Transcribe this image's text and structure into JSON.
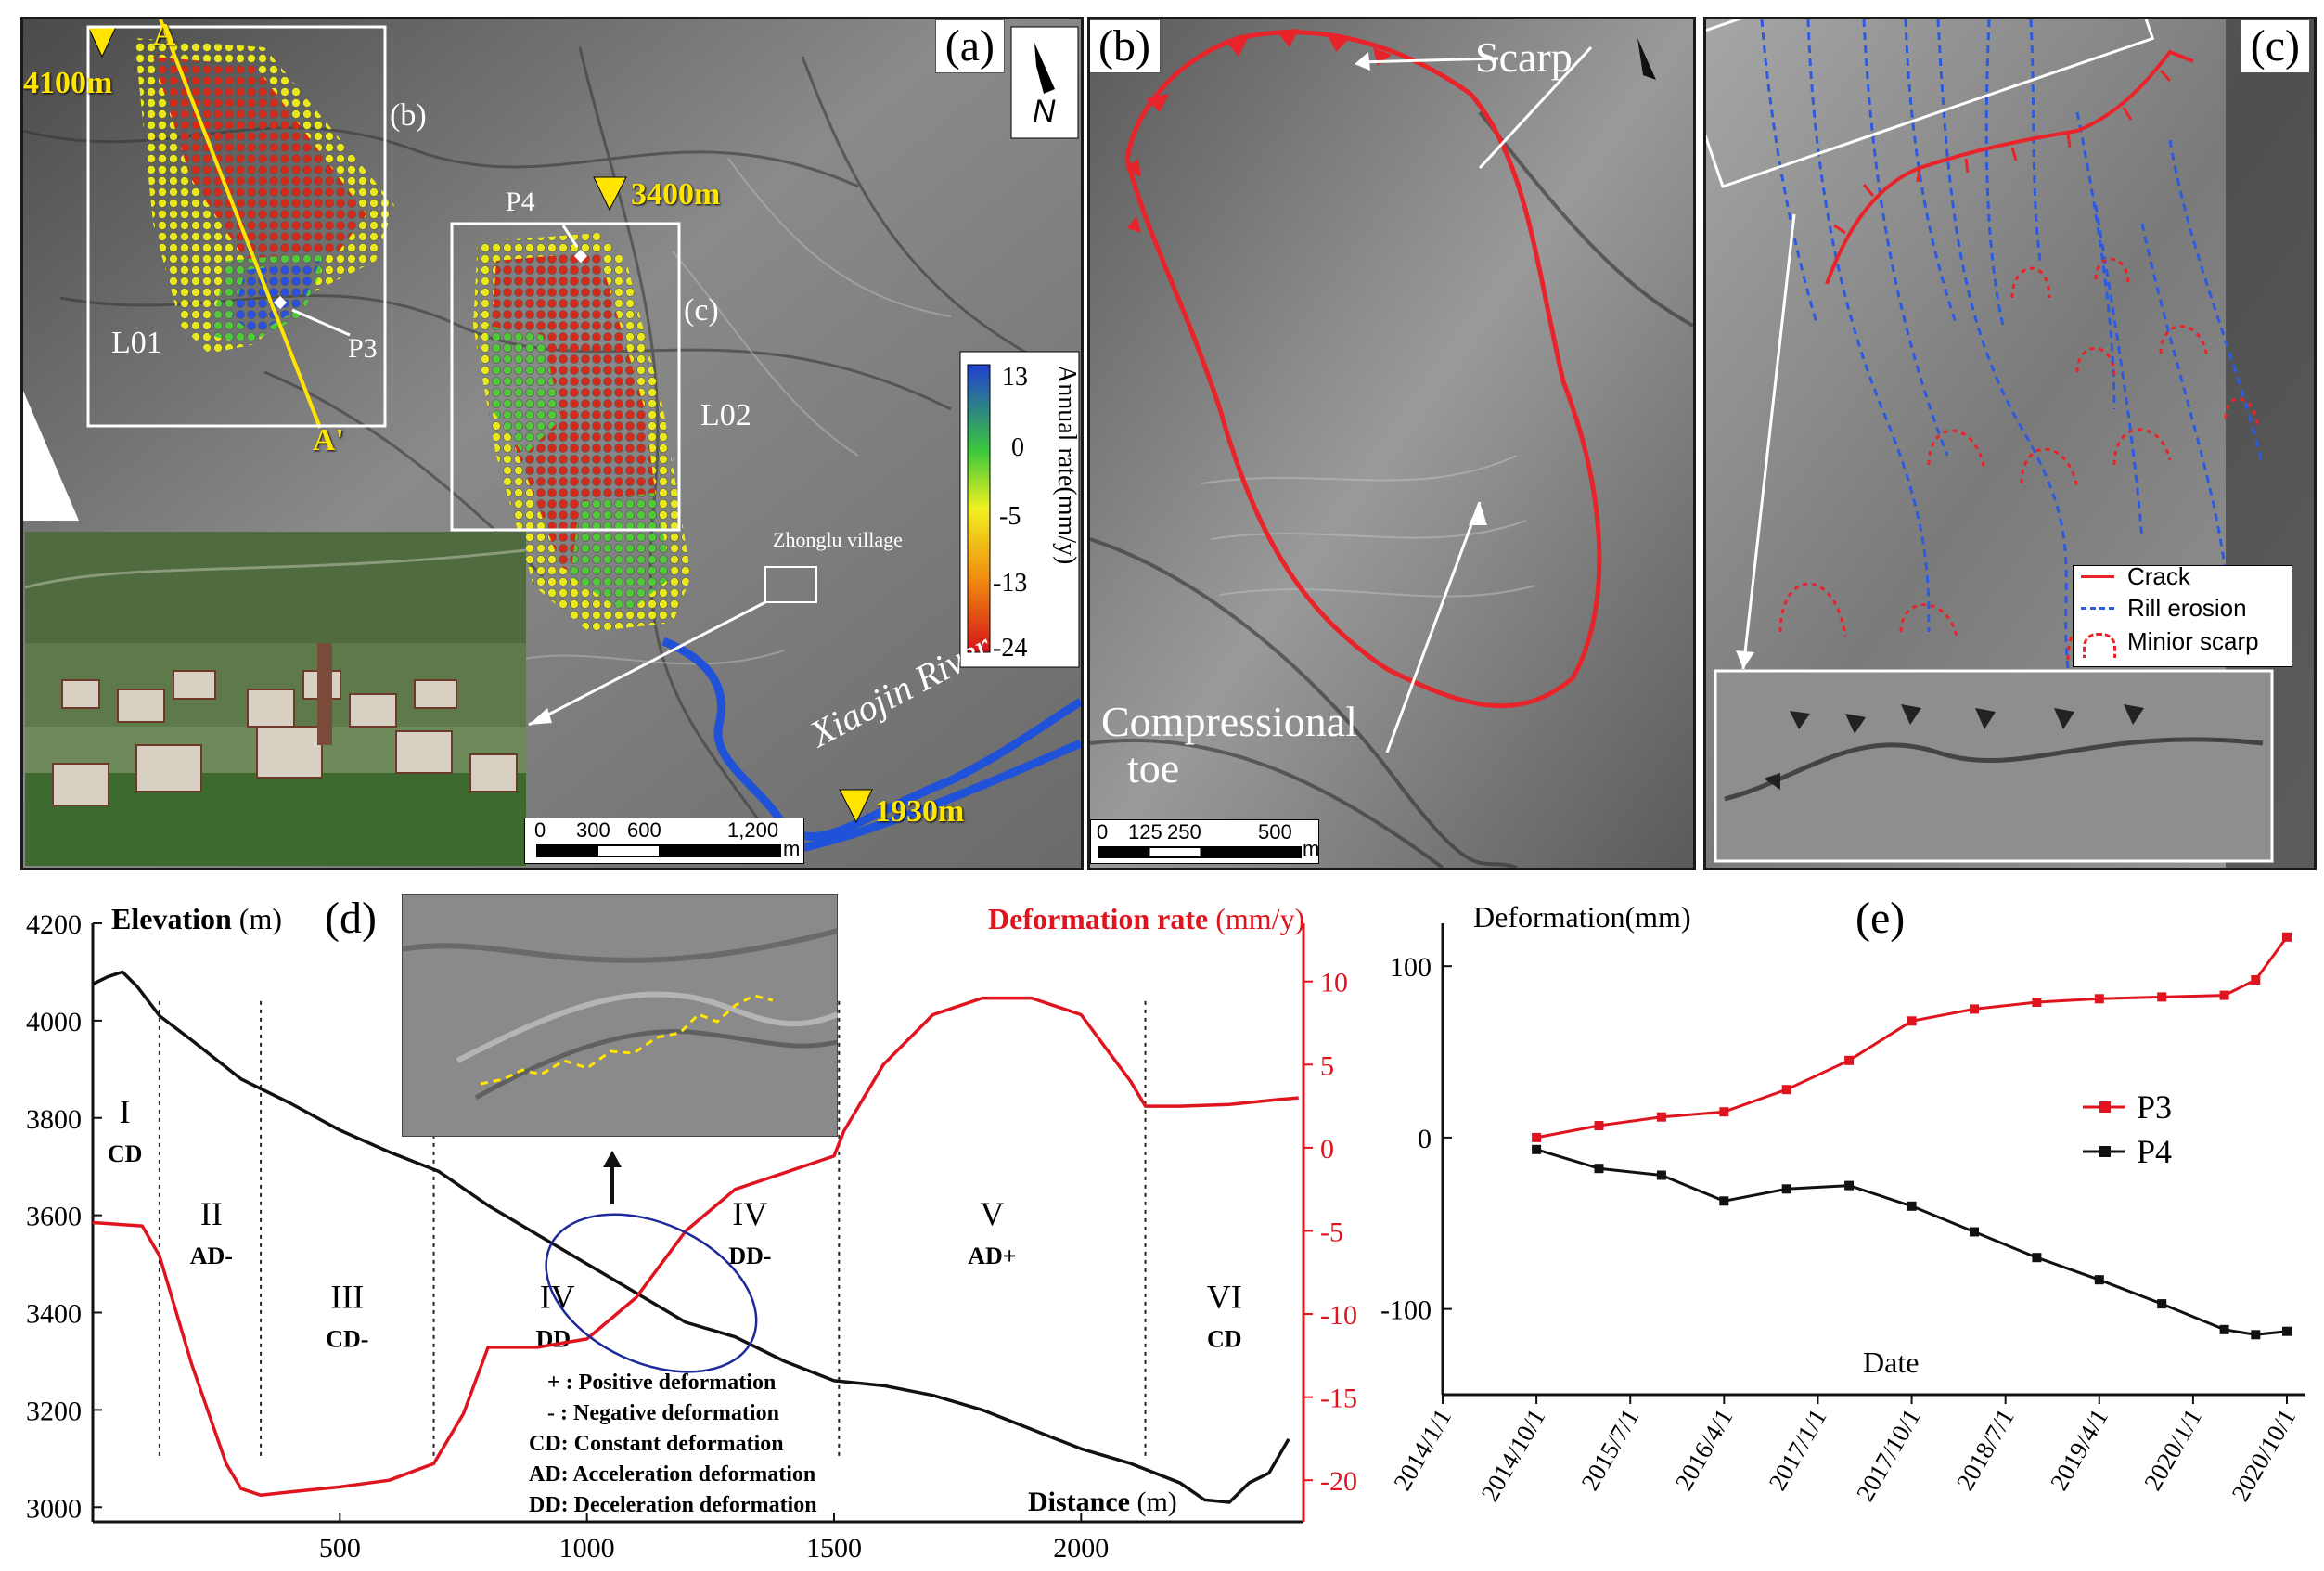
{
  "panel_a": {
    "tag": "(a)",
    "elev_top": "4100m",
    "elev_mid": "3400m",
    "elev_bottom": "1930m",
    "section_start": "A",
    "section_end": "A'",
    "box_b": "(b)",
    "box_c": "(c)",
    "slide_L01": "L01",
    "slide_L02": "L02",
    "point_P3": "P3",
    "point_P4": "P4",
    "village": "Zhonglu village",
    "river": "Xiaojin River",
    "north": "N",
    "colorbar_title": "Annual rate(mm/y)",
    "colorbar_ticks": [
      "13",
      "0",
      "-5",
      "-13",
      "-24"
    ],
    "scale_labels": [
      "0",
      "300",
      "600",
      "1,200"
    ],
    "scale_unit": "m"
  },
  "panel_b": {
    "tag": "(b)",
    "scarp": "Scarp",
    "toe_line1": "Compressional",
    "toe_line2": "toe",
    "scale_labels": [
      "0",
      "125",
      "250",
      "500"
    ],
    "scale_unit": "m"
  },
  "panel_c": {
    "tag": "(c)",
    "legend": [
      "Crack",
      "Rill erosion",
      "Minior scarp"
    ]
  },
  "panel_d": {
    "tag": "(d)",
    "left_axis_title": "Elevation",
    "left_axis_unit": "(m)",
    "right_axis_title": "Deformation rate",
    "right_axis_unit": "(mm/y)",
    "x_label": "Distance",
    "x_unit": "(m)",
    "zones": [
      {
        "roman": "I",
        "code": "CD"
      },
      {
        "roman": "II",
        "code": "AD-"
      },
      {
        "roman": "III",
        "code": "CD-"
      },
      {
        "roman": "IV",
        "code": "DD-"
      },
      {
        "roman": "IV",
        "code": "DD-"
      },
      {
        "roman": "V",
        "code": "AD+"
      },
      {
        "roman": "VI",
        "code": "CD"
      }
    ],
    "notes": [
      "+ : Positive deformation",
      "- : Negative deformation",
      "CD: Constant deformation",
      "AD: Acceleration deformation",
      "DD: Deceleration deformation"
    ],
    "colors": {
      "elevation": "#111111",
      "deformation": "#e0141e",
      "ellipse": "#1e2a9a"
    }
  },
  "panel_e": {
    "tag": "(e)",
    "y_title": "Deformation(mm)",
    "x_title": "Date",
    "legend": [
      "P3",
      "P4"
    ],
    "colors": {
      "P3": "#e0141e",
      "P4": "#111111"
    }
  },
  "chart_data": [
    {
      "type": "line",
      "panel": "d",
      "x_label": "Distance (m)",
      "x_ticks": [
        500,
        1000,
        1500,
        2000
      ],
      "xlim": [
        0,
        2450
      ],
      "left_axis": {
        "label": "Elevation (m)",
        "ticks": [
          3000,
          3200,
          3400,
          3600,
          3800,
          4000,
          4200
        ],
        "ylim": [
          2970,
          4200
        ]
      },
      "right_axis": {
        "label": "Deformation rate (mm/y)",
        "ticks": [
          -20,
          -15,
          -10,
          -5,
          0,
          5,
          10
        ],
        "ylim": [
          -22.5,
          13.5
        ]
      },
      "zone_boundaries": [
        135,
        340,
        690,
        1510,
        2130
      ],
      "series": [
        {
          "name": "Elevation",
          "axis": "left",
          "x": [
            0,
            30,
            60,
            90,
            135,
            200,
            300,
            400,
            500,
            600,
            700,
            800,
            900,
            1000,
            1100,
            1200,
            1300,
            1400,
            1500,
            1600,
            1700,
            1800,
            1900,
            2000,
            2100,
            2200,
            2250,
            2300,
            2340,
            2380,
            2420
          ],
          "y": [
            4075,
            4090,
            4100,
            4070,
            4010,
            3960,
            3880,
            3830,
            3775,
            3730,
            3690,
            3620,
            3560,
            3500,
            3440,
            3380,
            3350,
            3300,
            3260,
            3250,
            3230,
            3200,
            3160,
            3120,
            3090,
            3050,
            3015,
            3010,
            3050,
            3070,
            3140
          ]
        },
        {
          "name": "Deformation rate",
          "axis": "right",
          "x": [
            0,
            100,
            135,
            200,
            270,
            300,
            340,
            400,
            500,
            600,
            690,
            750,
            800,
            900,
            1000,
            1100,
            1200,
            1300,
            1400,
            1500,
            1520,
            1600,
            1700,
            1800,
            1900,
            2000,
            2050,
            2100,
            2130,
            2200,
            2300,
            2400,
            2440
          ],
          "y": [
            -4.5,
            -4.7,
            -6.5,
            -13,
            -19,
            -20.5,
            -20.9,
            -20.7,
            -20.4,
            -20,
            -19,
            -16,
            -12,
            -12,
            -11.5,
            -9,
            -5,
            -2.5,
            -1.5,
            -0.5,
            1,
            5,
            8,
            9,
            9,
            8,
            6,
            4,
            2.5,
            2.5,
            2.6,
            2.9,
            3
          ]
        }
      ]
    },
    {
      "type": "scatter",
      "panel": "e",
      "x_label": "Date",
      "y_label": "Deformation(mm)",
      "x_ticks": [
        "2014/1/1",
        "2014/10/1",
        "2015/7/1",
        "2016/4/1",
        "2017/1/1",
        "2017/10/1",
        "2018/7/1",
        "2019/4/1",
        "2020/1/1",
        "2020/10/1"
      ],
      "y_ticks": [
        -100,
        0,
        100
      ],
      "ylim": [
        -150,
        125
      ],
      "series": [
        {
          "name": "P3",
          "x": [
            "2014/10/1",
            "2015/4/1",
            "2015/10/1",
            "2016/4/1",
            "2016/10/1",
            "2017/4/1",
            "2017/10/1",
            "2018/4/1",
            "2018/10/1",
            "2019/4/1",
            "2019/10/1",
            "2020/4/1",
            "2020/7/1",
            "2020/10/1"
          ],
          "y": [
            0,
            7,
            12,
            15,
            28,
            45,
            68,
            75,
            79,
            81,
            82,
            83,
            92,
            117
          ]
        },
        {
          "name": "P4",
          "x": [
            "2014/10/1",
            "2015/4/1",
            "2015/10/1",
            "2016/4/1",
            "2016/10/1",
            "2017/4/1",
            "2017/10/1",
            "2018/4/1",
            "2018/10/1",
            "2019/4/1",
            "2019/10/1",
            "2020/4/1",
            "2020/7/1",
            "2020/10/1"
          ],
          "y": [
            -7,
            -18,
            -22,
            -37,
            -30,
            -28,
            -40,
            -55,
            -70,
            -83,
            -97,
            -112,
            -115,
            -113
          ]
        }
      ]
    }
  ]
}
